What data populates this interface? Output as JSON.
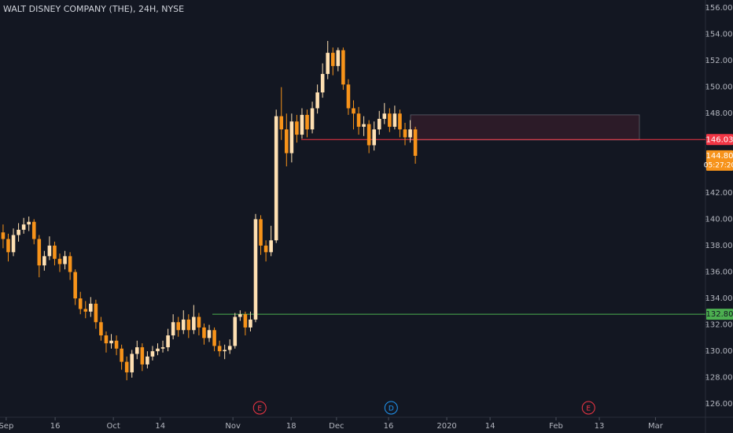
{
  "chart_data": {
    "type": "candlestick",
    "title": "WALT DISNEY COMPANY (THE), 24H, NYSE",
    "up_color": "#ffe0b2",
    "down_color": "#f7931a",
    "open": [
      139.0,
      138.5,
      137.5,
      138.8,
      139.2,
      139.6,
      139.8,
      138.5,
      136.5,
      137.2,
      138.0,
      137.0,
      136.6,
      137.2,
      136.0,
      134.0,
      133.2,
      133.0,
      133.6,
      132.2,
      131.2,
      130.6,
      130.8,
      130.2,
      129.2,
      128.4,
      129.8,
      130.3,
      129.0,
      129.6,
      130.0,
      130.2,
      130.3,
      131.2,
      132.2,
      131.6,
      132.4,
      131.6,
      132.6,
      131.8,
      131.0,
      131.6,
      130.4,
      130.0,
      130.1,
      130.4,
      132.6,
      132.8,
      131.8,
      132.4,
      140.0,
      138.0,
      137.5,
      138.4,
      147.8,
      146.8,
      145.0,
      147.4,
      146.4,
      147.9,
      146.8,
      148.4,
      149.6,
      151.0,
      152.6,
      151.6,
      152.8,
      150.2,
      148.4,
      148.0,
      147.0,
      147.2,
      145.6,
      146.8,
      147.6,
      148.0,
      147.0,
      148.0,
      146.8,
      146.2,
      146.8
    ],
    "high": [
      139.6,
      138.9,
      139.3,
      139.7,
      140.1,
      140.2,
      140.0,
      138.8,
      137.6,
      138.7,
      138.3,
      137.4,
      137.6,
      137.5,
      136.2,
      134.5,
      133.8,
      134.1,
      133.9,
      132.6,
      131.5,
      131.3,
      131.2,
      130.5,
      129.6,
      130.1,
      130.8,
      130.6,
      130.0,
      130.4,
      130.6,
      130.8,
      131.7,
      132.8,
      132.6,
      133.1,
      132.8,
      133.5,
      132.9,
      132.1,
      132.0,
      131.8,
      130.8,
      130.5,
      130.9,
      132.9,
      133.1,
      133.0,
      133.0,
      140.4,
      140.3,
      138.4,
      139.5,
      148.3,
      150.0,
      148.0,
      148.0,
      147.9,
      148.4,
      148.3,
      148.9,
      150.2,
      151.8,
      153.5,
      153.0,
      153.0,
      153.0,
      150.6,
      149.0,
      148.5,
      147.8,
      147.5,
      147.4,
      148.2,
      148.8,
      148.4,
      148.6,
      148.3,
      147.3,
      147.5,
      147.0
    ],
    "low": [
      137.8,
      136.8,
      137.2,
      138.3,
      138.9,
      139.1,
      138.1,
      135.6,
      136.1,
      136.9,
      136.5,
      136.0,
      136.2,
      135.4,
      133.5,
      132.8,
      132.5,
      132.6,
      131.7,
      130.8,
      129.9,
      130.2,
      129.7,
      128.6,
      127.8,
      128.0,
      129.4,
      128.5,
      128.7,
      129.3,
      129.7,
      129.9,
      130.0,
      130.9,
      131.1,
      131.3,
      131.0,
      131.3,
      131.2,
      130.5,
      130.7,
      130.0,
      129.6,
      129.4,
      129.8,
      130.2,
      132.3,
      131.2,
      131.5,
      132.2,
      137.3,
      136.8,
      137.2,
      138.2,
      146.0,
      144.0,
      144.3,
      145.8,
      146.1,
      146.2,
      146.5,
      148.0,
      149.2,
      150.6,
      150.9,
      151.2,
      149.8,
      147.9,
      146.8,
      146.4,
      146.3,
      145.0,
      145.2,
      146.4,
      147.2,
      146.6,
      146.8,
      146.2,
      145.6,
      145.8,
      144.2
    ],
    "close": [
      138.5,
      137.5,
      138.8,
      139.2,
      139.6,
      139.8,
      138.5,
      136.5,
      137.2,
      138.0,
      137.0,
      136.6,
      137.2,
      136.0,
      134.0,
      133.2,
      133.0,
      133.6,
      132.2,
      131.2,
      130.6,
      130.8,
      130.2,
      129.2,
      128.4,
      129.8,
      130.3,
      129.0,
      129.6,
      130.0,
      130.2,
      130.3,
      131.2,
      132.2,
      131.6,
      132.4,
      131.6,
      132.6,
      131.8,
      131.0,
      131.6,
      130.4,
      130.0,
      130.1,
      130.4,
      132.6,
      132.8,
      131.8,
      132.4,
      140.0,
      138.0,
      137.5,
      138.4,
      147.8,
      146.8,
      145.0,
      147.4,
      146.4,
      147.9,
      146.8,
      148.4,
      149.6,
      151.0,
      152.6,
      151.6,
      152.8,
      150.2,
      148.4,
      148.0,
      147.0,
      147.2,
      145.6,
      146.8,
      147.6,
      148.0,
      147.0,
      148.0,
      146.8,
      146.2,
      146.8,
      144.8
    ],
    "xlim": [
      -0.6,
      136.3
    ],
    "xticks": [
      {
        "value": 0.6,
        "label": "Sep"
      },
      {
        "value": 10.1,
        "label": "16"
      },
      {
        "value": 21.4,
        "label": "Oct"
      },
      {
        "value": 30.5,
        "label": "14"
      },
      {
        "value": 44.6,
        "label": "Nov"
      },
      {
        "value": 55.9,
        "label": "18"
      },
      {
        "value": 64.7,
        "label": "Dec"
      },
      {
        "value": 74.8,
        "label": "16"
      },
      {
        "value": 86.1,
        "label": "2020"
      },
      {
        "value": 94.5,
        "label": "14"
      },
      {
        "value": 107.3,
        "label": "Feb"
      },
      {
        "value": 115.7,
        "label": "13"
      },
      {
        "value": 126.6,
        "label": "Mar"
      }
    ],
    "ylim": [
      125,
      156.6
    ],
    "yticks": [
      {
        "value": 126,
        "label": "126.00"
      },
      {
        "value": 128,
        "label": "128.00"
      },
      {
        "value": 130,
        "label": "130.00"
      },
      {
        "value": 132,
        "label": "132.00"
      },
      {
        "value": 134,
        "label": "134.00"
      },
      {
        "value": 136,
        "label": "136.00"
      },
      {
        "value": 138,
        "label": "138.00"
      },
      {
        "value": 140,
        "label": "140.00"
      },
      {
        "value": 142,
        "label": "142.00"
      },
      {
        "value": 144,
        "label": "144.00"
      },
      {
        "value": 146,
        "label": "146.00"
      },
      {
        "value": 148,
        "label": "148.00"
      },
      {
        "value": 150,
        "label": "150.00"
      },
      {
        "value": 152,
        "label": "152.00"
      },
      {
        "value": 154,
        "label": "154.00"
      },
      {
        "value": 156,
        "label": "156.00"
      }
    ],
    "zone": {
      "top": 147.9,
      "bottom": 146.0
    },
    "hlines": [
      {
        "value": 146.03,
        "color": "#f23645"
      },
      {
        "value": 132.8,
        "label": "132.80",
        "color": "#4caf50"
      }
    ],
    "last_price": {
      "value": 144.8,
      "label": "144.80",
      "countdown": "05:27:20",
      "color": "#f7931a"
    },
    "events": [
      {
        "label": "E",
        "x": 49.8,
        "color": "#f23645"
      },
      {
        "label": "D",
        "x": 75.3,
        "color": "#2196f3"
      },
      {
        "label": "E",
        "x": 113.6,
        "color": "#f23645"
      }
    ]
  }
}
